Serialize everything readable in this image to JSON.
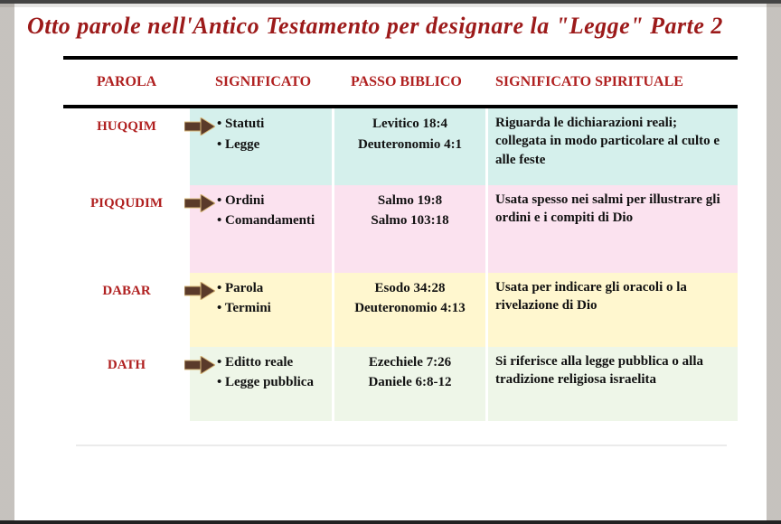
{
  "title": {
    "text": "Otto parole nell'Antico Testamento per designare la \"Legge\" Parte 2",
    "color": "#9c1a1a",
    "fontsize": 26
  },
  "columns": {
    "parola": "PAROLA",
    "significato": "SIGNIFICATO",
    "passo": "PASSO BIBLICO",
    "spirituale": "SIGNIFICATO SPIRITUALE",
    "header_color": "#b02020",
    "header_fontsize": 16
  },
  "rows": [
    {
      "parola": "HUQQIM",
      "significato": [
        "Statuti",
        "Legge"
      ],
      "passo": [
        "Levitico 18:4",
        "Deuteronomio 4:1"
      ],
      "spirituale": "Riguarda le dichiarazioni reali; collegata in modo particolare al culto e alle feste",
      "band_bg": "#d5f0ec",
      "height": 82
    },
    {
      "parola": "PIQQUDIM",
      "significato": [
        "Ordini",
        "Comandamenti"
      ],
      "passo": [
        "Salmo 19:8",
        "Salmo 103:18"
      ],
      "spirituale": "Usata spesso nei salmi per illustrare gli ordini e i compiti di Dio",
      "band_bg": "#fbe2ef",
      "height": 97
    },
    {
      "parola": "DABAR",
      "significato": [
        "Parola",
        "Termini"
      ],
      "passo": [
        "Esodo 34:28",
        "Deuteronomio 4:13"
      ],
      "spirituale": "Usata per indicare gli oracoli o la rivelazione di Dio",
      "band_bg": "#fff7cf",
      "height": 82
    },
    {
      "parola": "DATH",
      "significato": [
        "Editto reale",
        "Legge pubblica"
      ],
      "passo": [
        "Ezechiele 7:26",
        "Daniele 6:8-12"
      ],
      "spirituale": "Si riferisce alla legge pubblica o alla tradizione religiosa israelita",
      "band_bg": "#eef6e8",
      "height": 82
    }
  ],
  "style": {
    "parola_color": "#b02020",
    "body_font_color": "#111111",
    "arrow_fill": "#5a3a2a",
    "arrow_edge": "#d9b97a",
    "cell_fontsize": 15
  }
}
